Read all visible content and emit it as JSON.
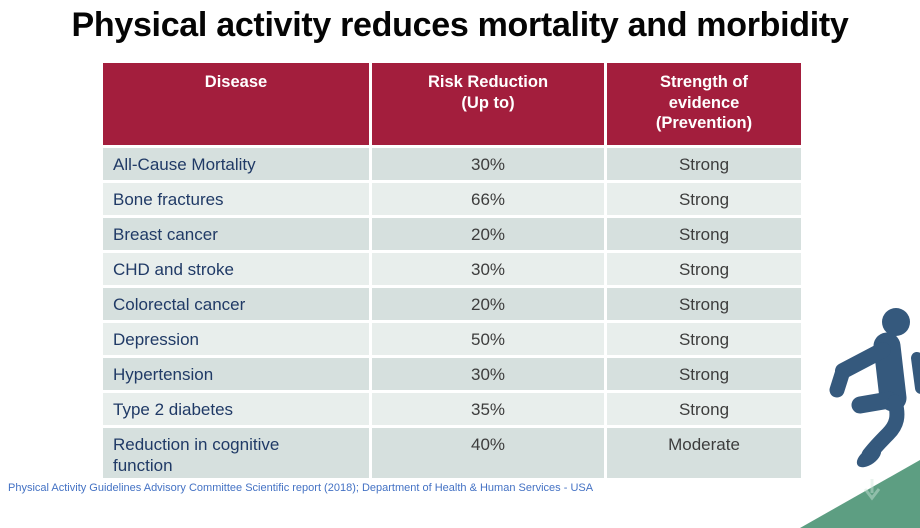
{
  "slide": {
    "title": "Physical activity reduces mortality and morbidity",
    "footnote": "Physical Activity Guidelines Advisory Committee Scientific report (2018); Department of Health & Human Services - USA"
  },
  "table": {
    "columns": [
      "Disease",
      "Risk Reduction\n(Up to)",
      "Strength of\nevidence\n(Prevention)"
    ],
    "rows": [
      {
        "disease": "All-Cause Mortality",
        "risk_reduction": "30%",
        "evidence": "Strong"
      },
      {
        "disease": "Bone fractures",
        "risk_reduction": "66%",
        "evidence": "Strong"
      },
      {
        "disease": "Breast cancer",
        "risk_reduction": "20%",
        "evidence": "Strong"
      },
      {
        "disease": "CHD and stroke",
        "risk_reduction": "30%",
        "evidence": "Strong"
      },
      {
        "disease": "Colorectal cancer",
        "risk_reduction": "20%",
        "evidence": "Strong"
      },
      {
        "disease": "Depression",
        "risk_reduction": "50%",
        "evidence": "Strong"
      },
      {
        "disease": "Hypertension",
        "risk_reduction": "30%",
        "evidence": "Strong"
      },
      {
        "disease": "Type 2 diabetes",
        "risk_reduction": "35%",
        "evidence": "Strong"
      },
      {
        "disease": "Reduction in cognitive function",
        "risk_reduction": "40%",
        "evidence": "Moderate"
      }
    ]
  },
  "icons": {
    "runner": "running-person-icon",
    "corner": "green-corner-triangle",
    "watermark": "down-arrow-watermark-icon"
  },
  "colors": {
    "header_bg": "#a31e3d",
    "row_odd_bg": "#d6e0de",
    "row_even_bg": "#e8eeec",
    "disease_text": "#203a66",
    "value_text": "#3d3d3d",
    "footnote_text": "#4472c4",
    "runner_blue": "#35597d",
    "triangle_green": "#5d9e82",
    "watermark_green": "#cfe6db"
  }
}
